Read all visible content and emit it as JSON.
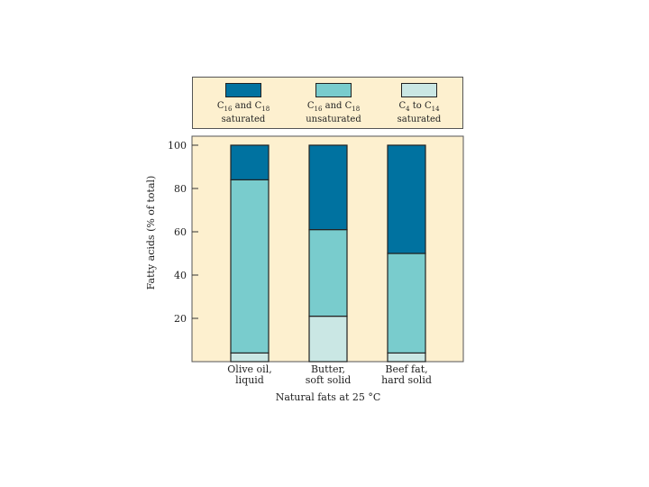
{
  "legend": [
    {
      "line1": "C",
      "sub1a": "16",
      "mid1": " and C",
      "sub1b": "18",
      "line2": "saturated",
      "color": "#0072a0"
    },
    {
      "line1": "C",
      "sub1a": "16",
      "mid1": " and C",
      "sub1b": "18",
      "line2": "unsaturated",
      "color": "#79cccd"
    },
    {
      "line1": "C",
      "sub1a": "4",
      "mid1": " to C",
      "sub1b": "14",
      "line2": "saturated",
      "color": "#cae7e4"
    }
  ],
  "chart_data": {
    "type": "bar",
    "stacked": true,
    "categories": [
      [
        "Olive oil,",
        "liquid"
      ],
      [
        "Butter,",
        "soft solid"
      ],
      [
        "Beef fat,",
        "hard solid"
      ]
    ],
    "series": [
      {
        "values": [
          4,
          21,
          4
        ],
        "color": "#cae7e4"
      },
      {
        "values": [
          80,
          40,
          46
        ],
        "color": "#79cccd"
      },
      {
        "values": [
          16,
          39,
          50
        ],
        "color": "#0072a0"
      }
    ],
    "yticks": [
      20,
      40,
      60,
      80,
      100
    ],
    "ylim": [
      0,
      100
    ],
    "ylabel": "Fatty acids (% of total)",
    "xlabel": "Natural fats at 25 °C",
    "plot_background": "#fdf0cf"
  }
}
